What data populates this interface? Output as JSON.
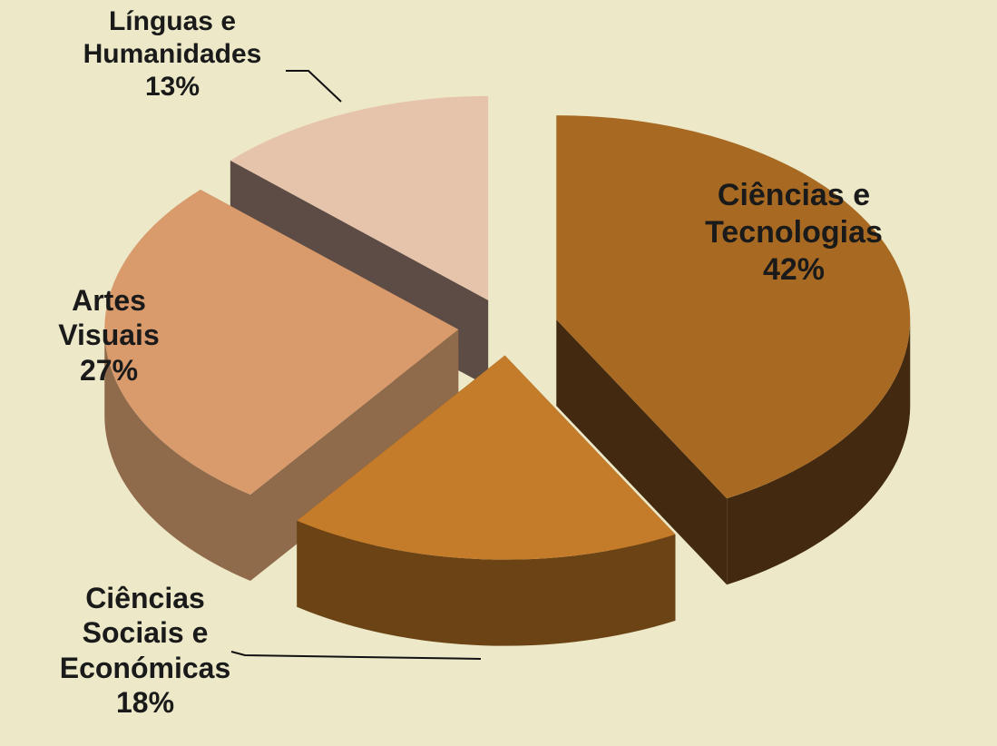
{
  "chart_data": {
    "type": "pie",
    "categories": [
      "Ciências e Tecnologias",
      "Ciências Sociais e Económicas",
      "Artes Visuais",
      "Línguas e Humanidades"
    ],
    "values": [
      42,
      18,
      27,
      13
    ],
    "value_labels": [
      "42%",
      "18%",
      "27%",
      "13%"
    ],
    "colors": [
      "#a86a22",
      "#c47c2a",
      "#d99a6c",
      "#e6c4ab"
    ],
    "side_colors": [
      "#43290f",
      "#6b4314",
      "#8f6a4b",
      "#5d4c45"
    ]
  }
}
